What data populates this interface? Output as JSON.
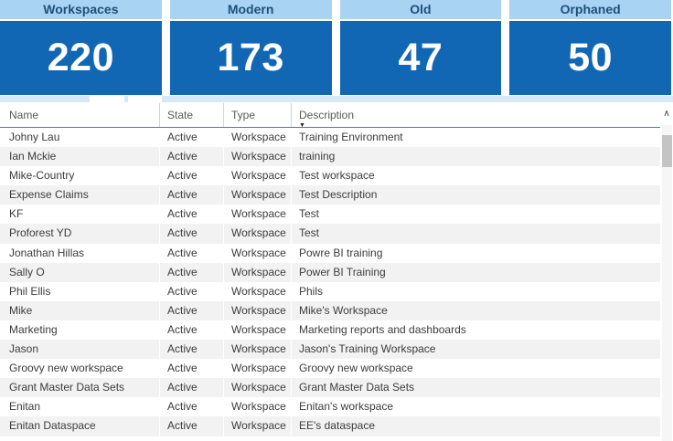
{
  "cards": [
    {
      "label": "Workspaces",
      "value": "220"
    },
    {
      "label": "Modern",
      "value": "173"
    },
    {
      "label": "Old",
      "value": "47"
    },
    {
      "label": "Orphaned",
      "value": "50"
    }
  ],
  "table": {
    "columns": [
      "Name",
      "State",
      "Type",
      "Description"
    ],
    "sorted_column": "Description",
    "sort_direction": "descending",
    "sort_icon": "▼",
    "rows": [
      {
        "name": "Johny Lau",
        "state": "Active",
        "type": "Workspace",
        "description": "Training Environment"
      },
      {
        "name": "Ian Mckie",
        "state": "Active",
        "type": "Workspace",
        "description": "training"
      },
      {
        "name": "Mike-Country",
        "state": "Active",
        "type": "Workspace",
        "description": "Test workspace"
      },
      {
        "name": "Expense Claims",
        "state": "Active",
        "type": "Workspace",
        "description": "Test Description"
      },
      {
        "name": "KF",
        "state": "Active",
        "type": "Workspace",
        "description": "Test"
      },
      {
        "name": "Proforest YD",
        "state": "Active",
        "type": "Workspace",
        "description": "Test"
      },
      {
        "name": "Jonathan Hillas",
        "state": "Active",
        "type": "Workspace",
        "description": "Powre BI training"
      },
      {
        "name": "Sally O",
        "state": "Active",
        "type": "Workspace",
        "description": "Power BI Training"
      },
      {
        "name": "Phil Ellis",
        "state": "Active",
        "type": "Workspace",
        "description": "Phils"
      },
      {
        "name": "Mike",
        "state": "Active",
        "type": "Workspace",
        "description": "Mike's Workspace"
      },
      {
        "name": "Marketing",
        "state": "Active",
        "type": "Workspace",
        "description": "Marketing reports and dashboards"
      },
      {
        "name": "Jason",
        "state": "Active",
        "type": "Workspace",
        "description": "Jason's Training Workspace"
      },
      {
        "name": "Groovy new workspace",
        "state": "Active",
        "type": "Workspace",
        "description": "Groovy new workspace"
      },
      {
        "name": "Grant Master Data Sets",
        "state": "Active",
        "type": "Workspace",
        "description": "Grant Master Data Sets"
      },
      {
        "name": "Enitan",
        "state": "Active",
        "type": "Workspace",
        "description": "Enitan's workspace"
      },
      {
        "name": "Enitan Dataspace",
        "state": "Active",
        "type": "Workspace",
        "description": "EE's dataspace"
      }
    ]
  },
  "scrollbar": {
    "up_arrow": "∧"
  },
  "colors": {
    "card_header_bg": "#A9D3F3",
    "card_title_text": "#1F4E79",
    "card_body_bg": "#1267B4",
    "card_value_text": "#FFFFFF",
    "table_header_underline": "#3381D6",
    "header_column_separator": "#BCDCF5",
    "alt_row_bg": "#F2F2F2",
    "strip_bg": "#D7E8F7",
    "scrollbar_thumb": "#C4C4C4"
  },
  "chart_data": [
    {
      "type": "table",
      "title": "Workspace KPI cards",
      "categories": [
        "Workspaces",
        "Modern",
        "Old",
        "Orphaned"
      ],
      "values": [
        220,
        173,
        47,
        50
      ]
    },
    {
      "type": "table",
      "title": "Workspaces list",
      "columns": [
        "Name",
        "State",
        "Type",
        "Description"
      ],
      "rows": [
        [
          "Johny Lau",
          "Active",
          "Workspace",
          "Training Environment"
        ],
        [
          "Ian Mckie",
          "Active",
          "Workspace",
          "training"
        ],
        [
          "Mike-Country",
          "Active",
          "Workspace",
          "Test workspace"
        ],
        [
          "Expense Claims",
          "Active",
          "Workspace",
          "Test Description"
        ],
        [
          "KF",
          "Active",
          "Workspace",
          "Test"
        ],
        [
          "Proforest YD",
          "Active",
          "Workspace",
          "Test"
        ],
        [
          "Jonathan Hillas",
          "Active",
          "Workspace",
          "Powre BI training"
        ],
        [
          "Sally O",
          "Active",
          "Workspace",
          "Power BI Training"
        ],
        [
          "Phil Ellis",
          "Active",
          "Workspace",
          "Phils"
        ],
        [
          "Mike",
          "Active",
          "Workspace",
          "Mike's Workspace"
        ],
        [
          "Marketing",
          "Active",
          "Workspace",
          "Marketing reports and dashboards"
        ],
        [
          "Jason",
          "Active",
          "Workspace",
          "Jason's Training Workspace"
        ],
        [
          "Groovy new workspace",
          "Active",
          "Workspace",
          "Groovy new workspace"
        ],
        [
          "Grant Master Data Sets",
          "Active",
          "Workspace",
          "Grant Master Data Sets"
        ],
        [
          "Enitan",
          "Active",
          "Workspace",
          "Enitan's workspace"
        ],
        [
          "Enitan Dataspace",
          "Active",
          "Workspace",
          "EE's dataspace"
        ]
      ]
    }
  ]
}
